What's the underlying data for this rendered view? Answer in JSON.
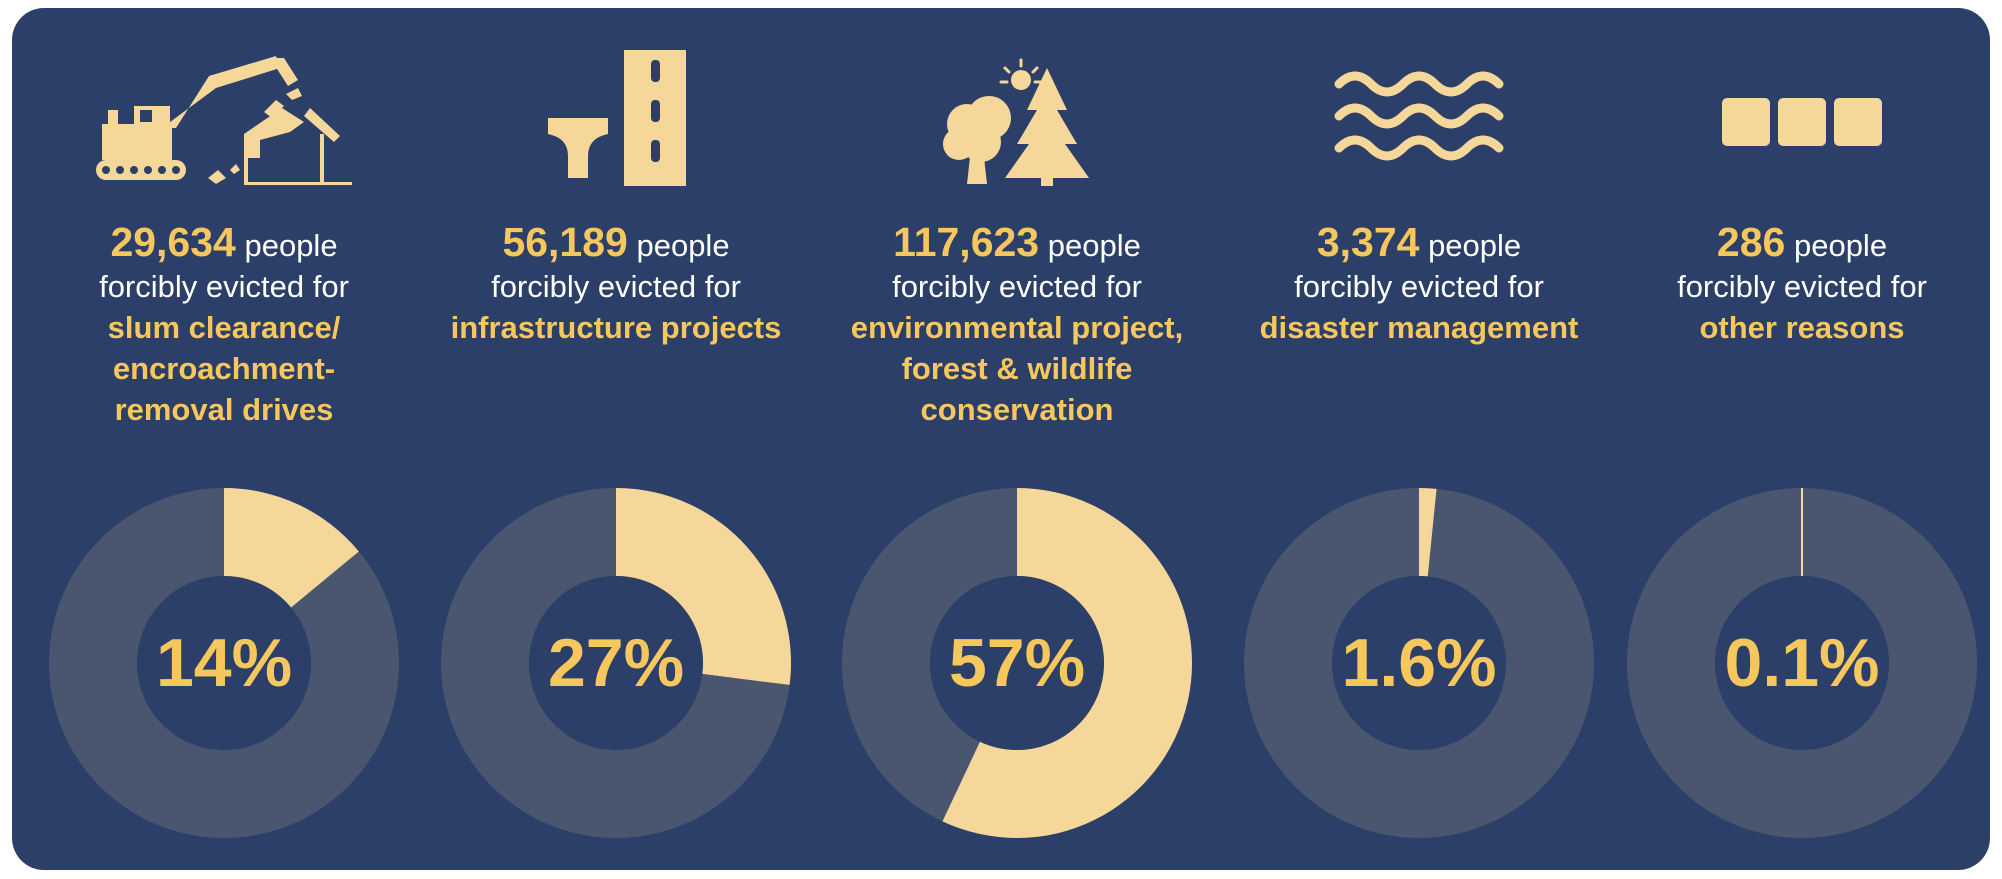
{
  "colors": {
    "background": "#2b3f68",
    "accent": "#f6c75d",
    "slice": "#f5d79a",
    "ring": "#4a5670",
    "text": "#ffffff"
  },
  "people_word": "people",
  "lead_text": "forcibly evicted for",
  "items": [
    {
      "icon": "excavator-demolition-icon",
      "count": "29,634",
      "reason_lines": [
        "slum clearance/",
        "encroachment-",
        "removal drives"
      ],
      "percent_label": "14%"
    },
    {
      "icon": "road-bridge-icon",
      "count": "56,189",
      "reason_lines": [
        "infrastructure projects"
      ],
      "percent_label": "27%"
    },
    {
      "icon": "trees-sun-icon",
      "count": "117,623",
      "reason_lines": [
        "environmental project,",
        "forest & wildlife",
        "conservation"
      ],
      "percent_label": "57%"
    },
    {
      "icon": "water-waves-icon",
      "count": "3,374",
      "reason_lines": [
        "disaster management"
      ],
      "percent_label": "1.6%"
    },
    {
      "icon": "three-squares-icon",
      "count": "286",
      "reason_lines": [
        "other reasons"
      ],
      "percent_label": "0.1%"
    }
  ],
  "chart_data": [
    {
      "type": "pie",
      "title": "",
      "categories": [
        "slum clearance/encroachment-removal drives",
        "rest"
      ],
      "values": [
        14,
        86
      ],
      "value_label": "14%"
    },
    {
      "type": "pie",
      "title": "",
      "categories": [
        "infrastructure projects",
        "rest"
      ],
      "values": [
        27,
        73
      ],
      "value_label": "27%"
    },
    {
      "type": "pie",
      "title": "",
      "categories": [
        "environmental project, forest & wildlife conservation",
        "rest"
      ],
      "values": [
        57,
        43
      ],
      "value_label": "57%"
    },
    {
      "type": "pie",
      "title": "",
      "categories": [
        "disaster management",
        "rest"
      ],
      "values": [
        1.6,
        98.4
      ],
      "value_label": "1.6%"
    },
    {
      "type": "pie",
      "title": "",
      "categories": [
        "other reasons",
        "rest"
      ],
      "values": [
        0.1,
        99.9
      ],
      "value_label": "0.1%"
    }
  ]
}
